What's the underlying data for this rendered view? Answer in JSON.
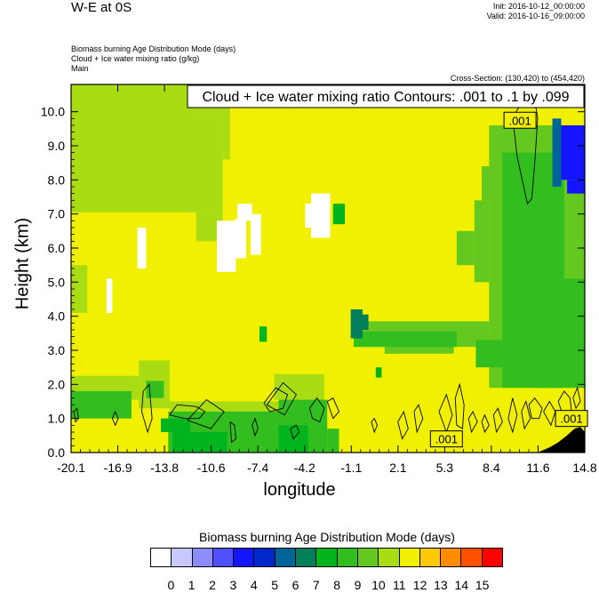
{
  "header": {
    "title": "W-E at 0S",
    "init": "Init: 2016-10-12_00:00:00",
    "valid": "Valid: 2016-10-16_09:00:00",
    "var_lines": [
      "Biomass burning Age Distribution Mode    (days)",
      "Cloud + Ice water mixing ratio    (g/kg)",
      "Main"
    ],
    "cross_section": "Cross-Section: (130,420) to (454,420)"
  },
  "chart_data": {
    "type": "heatmap",
    "contour_title": "Cloud + Ice water mixing ratio Contours: .001 to .1 by .099",
    "xlabel": "longitude",
    "ylabel": "Height (km)",
    "x_ticks": [
      "-20.1",
      "-16.9",
      "-13.8",
      "-10.6",
      "-7.4",
      "-4.2",
      "-1.1",
      "2.1",
      "5.3",
      "8.4",
      "11.6",
      "14.8"
    ],
    "y_ticks": [
      "0.0",
      "1.0",
      "2.0",
      "3.0",
      "4.0",
      "5.0",
      "6.0",
      "7.0",
      "8.0",
      "9.0",
      "10.0"
    ],
    "xlim": [
      -20.1,
      14.8
    ],
    "ylim": [
      0.0,
      10.8
    ],
    "contour_labels": [
      {
        "text": ".001",
        "x": 10.4,
        "y": 9.75
      },
      {
        "text": ".001",
        "x": 5.4,
        "y": 0.4
      },
      {
        "text": ".001",
        "x": 13.9,
        "y": 1.0
      }
    ],
    "legend": {
      "title": "Biomass burning Age Distribution Mode  (days)",
      "labels": [
        "0",
        "1",
        "2",
        "3",
        "4",
        "5",
        "6",
        "7",
        "8",
        "9",
        "10",
        "11",
        "12",
        "13",
        "14",
        "15"
      ],
      "colors": [
        "#ffffff",
        "#c8c8ff",
        "#8c8cff",
        "#5050ff",
        "#1414ff",
        "#0028c8",
        "#006496",
        "#007f5a",
        "#00b41e",
        "#32be1e",
        "#64c81e",
        "#aadc14",
        "#f0f000",
        "#ffc800",
        "#ff8c00",
        "#ff5000",
        "#ff0000"
      ]
    },
    "regions": [
      {
        "name": "background",
        "value": 11.5,
        "color": "#f0f000",
        "rects": [
          [
            -20.1,
            0,
            14.8,
            10.8
          ]
        ]
      },
      {
        "name": "upper-left",
        "value": 10.5,
        "color": "#aadc14",
        "rects": [
          [
            -20.1,
            7.05,
            -9.8,
            10.8
          ],
          [
            -20.1,
            7.05,
            -11.6,
            8.2
          ],
          [
            -9.8,
            8.6,
            -9.3,
            10.8
          ],
          [
            -11.6,
            6.2,
            -9.8,
            7.05
          ],
          [
            -20.1,
            4.1,
            -19.0,
            5.5
          ]
        ]
      },
      {
        "name": "right-column",
        "value": 9.5,
        "color": "#64c81e",
        "rects": [
          [
            8.3,
            1.9,
            14.8,
            9.6
          ],
          [
            7.3,
            5.0,
            8.3,
            7.4
          ],
          [
            6.1,
            5.5,
            7.3,
            6.5
          ],
          [
            7.8,
            7.4,
            8.5,
            8.4
          ],
          [
            -0.9,
            3.1,
            8.3,
            3.85
          ],
          [
            1.2,
            2.9,
            5.9,
            3.6
          ]
        ]
      },
      {
        "name": "right-column-inner",
        "value": 9.0,
        "color": "#32be1e",
        "rects": [
          [
            9.2,
            1.9,
            13.4,
            8.8
          ],
          [
            11.4,
            1.9,
            14.8,
            5.1
          ],
          [
            -0.9,
            3.1,
            6.1,
            3.55
          ],
          [
            7.4,
            2.5,
            9.2,
            3.3
          ]
        ]
      },
      {
        "name": "low-level-green",
        "value": 10.0,
        "color": "#aadc14",
        "rects": [
          [
            -20.1,
            1.55,
            -15.5,
            2.25
          ],
          [
            -15.5,
            1.3,
            -13.4,
            2.7
          ],
          [
            -13.4,
            1.0,
            -6.0,
            1.5
          ],
          [
            -6.3,
            1.55,
            -2.9,
            2.3
          ]
        ]
      },
      {
        "name": "low-level-mid",
        "value": 8.5,
        "color": "#32be1e",
        "rects": [
          [
            -20.1,
            1.0,
            -16.0,
            1.8
          ],
          [
            -13.5,
            0.0,
            -6.0,
            1.2
          ],
          [
            -6.0,
            0.0,
            -2.7,
            1.55
          ],
          [
            -15.0,
            1.6,
            -13.8,
            2.1
          ],
          [
            -2.7,
            0.0,
            -1.9,
            0.7
          ]
        ]
      },
      {
        "name": "low-level-dark",
        "value": 8.0,
        "color": "#00b41e",
        "rects": [
          [
            -13.2,
            0.0,
            -9.5,
            0.6
          ],
          [
            -6.0,
            0.0,
            -4.0,
            0.8
          ],
          [
            -14.0,
            0.6,
            -12.0,
            1.0
          ]
        ]
      },
      {
        "name": "mid-blob",
        "value": 7.0,
        "color": "#007f5a",
        "rects": [
          [
            -1.1,
            3.35,
            -0.3,
            4.2
          ],
          [
            -0.4,
            3.6,
            0.1,
            4.05
          ]
        ]
      },
      {
        "name": "small-green-dots",
        "value": 8.0,
        "color": "#00b41e",
        "rects": [
          [
            -7.3,
            3.25,
            -6.8,
            3.7
          ],
          [
            0.6,
            2.2,
            1.0,
            2.5
          ],
          [
            -2.3,
            6.7,
            -1.5,
            7.3
          ]
        ]
      },
      {
        "name": "upper-right-blue",
        "value": 3.5,
        "color": "#1414ff",
        "rects": [
          [
            12.9,
            8.0,
            14.8,
            9.6
          ],
          [
            13.6,
            7.6,
            14.8,
            8.0
          ]
        ]
      },
      {
        "name": "upper-right-blue-edge",
        "value": 5.0,
        "color": "#006496",
        "rects": [
          [
            12.6,
            7.8,
            13.2,
            9.8
          ]
        ]
      },
      {
        "name": "white-holes",
        "value": 0.0,
        "color": "#ffffff",
        "rects": [
          [
            -10.2,
            5.3,
            -8.9,
            6.8
          ],
          [
            -9.0,
            5.7,
            -8.2,
            6.85
          ],
          [
            -8.8,
            6.8,
            -7.8,
            7.3
          ],
          [
            -7.9,
            5.8,
            -7.2,
            7.0
          ],
          [
            -3.8,
            6.3,
            -2.5,
            7.6
          ],
          [
            -4.2,
            6.6,
            -3.8,
            7.3
          ],
          [
            -15.6,
            5.4,
            -15.0,
            6.6
          ],
          [
            -17.7,
            4.1,
            -17.3,
            5.1
          ]
        ]
      }
    ],
    "terrain": [
      [
        11.6,
        0
      ],
      [
        12.4,
        0.15
      ],
      [
        13.0,
        0.3
      ],
      [
        13.6,
        0.5
      ],
      [
        14.1,
        0.7
      ],
      [
        14.5,
        0.75
      ],
      [
        14.8,
        0.6
      ],
      [
        14.8,
        0
      ]
    ],
    "contours": [
      [
        [
          9.9,
          9.85
        ],
        [
          10.2,
          8.7
        ],
        [
          10.9,
          7.3
        ],
        [
          11.2,
          7.45
        ],
        [
          11.4,
          8.5
        ],
        [
          11.6,
          9.8
        ],
        [
          11.5,
          10.1
        ],
        [
          10.6,
          10.3
        ],
        [
          9.9,
          9.85
        ]
      ],
      [
        [
          -13.4,
          1.1
        ],
        [
          -12.9,
          1.4
        ],
        [
          -11.6,
          1.35
        ],
        [
          -11.0,
          1.2
        ],
        [
          -11.4,
          1.0
        ],
        [
          -12.4,
          1.0
        ],
        [
          -13.4,
          1.1
        ]
      ],
      [
        [
          -12.2,
          0.95
        ],
        [
          -10.9,
          1.55
        ],
        [
          -9.7,
          1.2
        ],
        [
          -10.6,
          0.7
        ],
        [
          -12.2,
          0.95
        ]
      ],
      [
        [
          -7.0,
          1.45
        ],
        [
          -6.2,
          1.9
        ],
        [
          -5.4,
          1.7
        ],
        [
          -5.7,
          1.3
        ],
        [
          -6.6,
          1.2
        ],
        [
          -7.0,
          1.45
        ]
      ],
      [
        [
          -6.8,
          1.4
        ],
        [
          -5.7,
          2.05
        ],
        [
          -4.8,
          1.7
        ],
        [
          -5.6,
          1.1
        ],
        [
          -6.8,
          1.4
        ]
      ],
      [
        [
          -3.9,
          1.3
        ],
        [
          -3.4,
          1.6
        ],
        [
          -2.9,
          1.3
        ],
        [
          -3.2,
          0.9
        ],
        [
          -3.7,
          1.0
        ],
        [
          -3.9,
          1.3
        ]
      ],
      [
        [
          -2.7,
          1.5
        ],
        [
          -2.3,
          1.6
        ],
        [
          -1.9,
          1.2
        ],
        [
          -2.3,
          1.0
        ],
        [
          -2.7,
          1.5
        ]
      ],
      [
        [
          -15.2,
          1.8
        ],
        [
          -14.8,
          2.0
        ],
        [
          -14.6,
          1.0
        ],
        [
          -14.9,
          0.6
        ],
        [
          -15.3,
          1.2
        ],
        [
          -15.2,
          1.8
        ]
      ],
      [
        [
          -9.3,
          0.9
        ],
        [
          -9.0,
          0.8
        ],
        [
          -8.9,
          0.4
        ],
        [
          -9.2,
          0.3
        ],
        [
          -9.3,
          0.9
        ]
      ],
      [
        [
          -5.2,
          0.7
        ],
        [
          -4.8,
          0.8
        ],
        [
          -4.6,
          0.6
        ],
        [
          -5.0,
          0.4
        ],
        [
          -5.2,
          0.7
        ]
      ],
      [
        [
          2.1,
          0.9
        ],
        [
          2.5,
          1.2
        ],
        [
          2.8,
          0.7
        ],
        [
          2.4,
          0.4
        ],
        [
          2.1,
          0.9
        ]
      ],
      [
        [
          3.2,
          1.2
        ],
        [
          3.5,
          1.4
        ],
        [
          3.8,
          1.0
        ],
        [
          3.4,
          0.6
        ],
        [
          3.2,
          1.2
        ]
      ],
      [
        [
          4.9,
          1.2
        ],
        [
          5.4,
          1.7
        ],
        [
          5.8,
          1.1
        ],
        [
          5.4,
          0.6
        ],
        [
          4.9,
          1.2
        ]
      ],
      [
        [
          6.0,
          1.6
        ],
        [
          6.3,
          2.0
        ],
        [
          6.6,
          1.4
        ],
        [
          6.5,
          0.7
        ],
        [
          6.1,
          0.8
        ],
        [
          6.0,
          1.6
        ]
      ],
      [
        [
          6.9,
          1.0
        ],
        [
          7.2,
          1.2
        ],
        [
          7.5,
          0.9
        ],
        [
          7.1,
          0.6
        ],
        [
          6.9,
          1.0
        ]
      ],
      [
        [
          7.8,
          0.9
        ],
        [
          8.0,
          1.1
        ],
        [
          8.3,
          0.8
        ],
        [
          8.0,
          0.6
        ],
        [
          7.8,
          0.9
        ]
      ],
      [
        [
          8.6,
          1.1
        ],
        [
          8.9,
          1.3
        ],
        [
          9.2,
          0.9
        ],
        [
          8.8,
          0.6
        ],
        [
          8.6,
          1.1
        ]
      ],
      [
        [
          9.6,
          1.0
        ],
        [
          9.9,
          1.6
        ],
        [
          10.2,
          1.1
        ],
        [
          9.9,
          0.6
        ],
        [
          9.6,
          1.0
        ]
      ],
      [
        [
          10.5,
          1.2
        ],
        [
          10.8,
          1.5
        ],
        [
          11.1,
          1.0
        ],
        [
          10.7,
          0.7
        ],
        [
          10.5,
          1.2
        ]
      ],
      [
        [
          11.0,
          1.4
        ],
        [
          11.4,
          1.6
        ],
        [
          11.9,
          1.3
        ],
        [
          11.7,
          1.0
        ],
        [
          11.2,
          1.0
        ],
        [
          11.0,
          1.4
        ]
      ],
      [
        [
          12.0,
          1.2
        ],
        [
          12.4,
          1.5
        ],
        [
          12.8,
          1.2
        ],
        [
          12.5,
          0.8
        ],
        [
          12.0,
          1.2
        ]
      ],
      [
        [
          13.0,
          1.5
        ],
        [
          13.4,
          1.8
        ],
        [
          13.8,
          1.6
        ],
        [
          13.9,
          1.2
        ],
        [
          13.3,
          1.1
        ],
        [
          13.0,
          1.5
        ]
      ],
      [
        [
          14.0,
          1.6
        ],
        [
          14.3,
          1.9
        ],
        [
          14.5,
          1.5
        ],
        [
          14.2,
          1.3
        ],
        [
          14.0,
          1.6
        ]
      ],
      [
        [
          -19.9,
          1.2
        ],
        [
          -19.7,
          1.3
        ],
        [
          -19.6,
          1.0
        ],
        [
          -19.8,
          0.9
        ],
        [
          -19.9,
          1.2
        ]
      ],
      [
        [
          -17.3,
          1.0
        ],
        [
          -17.1,
          1.2
        ],
        [
          -16.9,
          1.0
        ],
        [
          -17.1,
          0.8
        ],
        [
          -17.3,
          1.0
        ]
      ],
      [
        [
          -7.8,
          0.8
        ],
        [
          -7.6,
          1.0
        ],
        [
          -7.4,
          0.7
        ],
        [
          -7.6,
          0.5
        ],
        [
          -7.8,
          0.8
        ]
      ],
      [
        [
          0.3,
          0.9
        ],
        [
          0.5,
          1.0
        ],
        [
          0.7,
          0.8
        ],
        [
          0.5,
          0.6
        ],
        [
          0.3,
          0.9
        ]
      ]
    ]
  }
}
